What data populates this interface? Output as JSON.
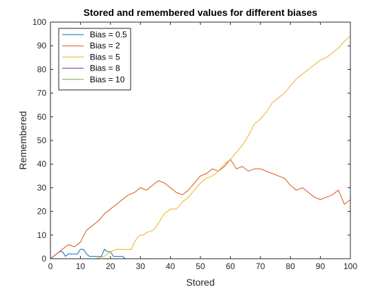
{
  "chart_data": {
    "type": "line",
    "title": "Stored and remembered values for different biases",
    "xlabel": "Stored",
    "ylabel": "Remembered",
    "xlim": [
      0,
      100
    ],
    "ylim": [
      0,
      100
    ],
    "xticks": [
      0,
      10,
      20,
      30,
      40,
      50,
      60,
      70,
      80,
      90,
      100
    ],
    "yticks": [
      0,
      10,
      20,
      30,
      40,
      50,
      60,
      70,
      80,
      90,
      100
    ],
    "grid": false,
    "legend_position": "top-left",
    "series": [
      {
        "name": "Bias = 0.5",
        "color": "#0072BD",
        "x": [
          0,
          1,
          2,
          3,
          4,
          5,
          6,
          7,
          8,
          9,
          10,
          11,
          12,
          13,
          14,
          15,
          16,
          17,
          18,
          19,
          20,
          21,
          22,
          23,
          24,
          25
        ],
        "y": [
          0,
          1,
          2,
          3,
          3,
          1,
          2,
          2,
          2,
          2,
          4,
          4,
          2,
          1,
          1,
          1,
          1,
          1,
          4,
          3,
          3,
          1,
          1,
          1,
          1,
          0
        ]
      },
      {
        "name": "Bias = 2",
        "color": "#D95319",
        "x": [
          0,
          2,
          4,
          6,
          8,
          10,
          12,
          14,
          16,
          18,
          20,
          22,
          24,
          26,
          28,
          30,
          32,
          34,
          36,
          38,
          40,
          42,
          44,
          46,
          48,
          50,
          52,
          54,
          56,
          58,
          60,
          62,
          64,
          66,
          68,
          70,
          72,
          74,
          76,
          78,
          80,
          82,
          84,
          86,
          88,
          90,
          92,
          94,
          96,
          98,
          100
        ],
        "y": [
          0,
          2,
          4,
          6,
          5,
          7,
          12,
          14,
          16,
          19,
          21,
          23,
          25,
          27,
          28,
          30,
          29,
          31,
          33,
          32,
          30,
          28,
          27,
          29,
          32,
          35,
          36,
          38,
          37,
          39,
          42,
          38,
          39,
          37,
          38,
          38,
          37,
          36,
          35,
          34,
          31,
          29,
          30,
          28,
          26,
          25,
          26,
          27,
          29,
          23,
          25
        ]
      },
      {
        "name": "Bias = 5",
        "color": "#EDB120",
        "x": [
          0,
          5,
          10,
          15,
          18,
          20,
          22,
          25,
          27,
          28,
          29,
          30,
          31,
          32,
          34,
          35,
          36,
          38,
          40,
          42,
          44,
          46,
          48,
          50,
          52,
          54,
          56,
          58,
          60,
          62,
          64,
          66,
          68,
          70,
          72,
          74,
          76,
          78,
          80,
          82,
          84,
          86,
          88,
          90,
          92,
          94,
          96,
          98,
          100
        ],
        "y": [
          0,
          0,
          0,
          0,
          1,
          3,
          4,
          4,
          4,
          7,
          9,
          10,
          10,
          11,
          12,
          13,
          15,
          19,
          21,
          21,
          24,
          26,
          29,
          32,
          34,
          35,
          37,
          40,
          42,
          45,
          48,
          52,
          57,
          59,
          62,
          66,
          68,
          70,
          73,
          76,
          78,
          80,
          82,
          84,
          85,
          87,
          89,
          92,
          94
        ]
      },
      {
        "name": "Bias = 8",
        "color": "#7E2F8E",
        "x": [
          0,
          10,
          20,
          30,
          38
        ],
        "y": [
          0,
          0,
          0,
          0,
          0
        ]
      },
      {
        "name": "Bias = 10",
        "color": "#77AC30",
        "x": [
          0,
          10,
          20,
          30
        ],
        "y": [
          0,
          0,
          0,
          0
        ]
      }
    ]
  }
}
